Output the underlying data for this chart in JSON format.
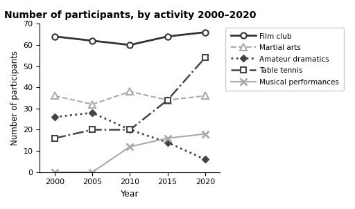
{
  "title": "Number of participants, by activity 2000–2020",
  "xlabel": "Year",
  "ylabel": "Number of participants",
  "years": [
    2000,
    2005,
    2010,
    2015,
    2020
  ],
  "series": [
    {
      "label": "Film club",
      "values": [
        64,
        62,
        60,
        64,
        66
      ],
      "color": "#333333",
      "linestyle": "-",
      "marker": "o",
      "markersize": 6,
      "linewidth": 2,
      "markerfacecolor": "white",
      "markeredgecolor": "#333333",
      "markeredgewidth": 1.5
    },
    {
      "label": "Martial arts",
      "values": [
        36,
        32,
        38,
        34,
        36
      ],
      "color": "#aaaaaa",
      "linestyle": "--",
      "marker": "^",
      "markersize": 7,
      "linewidth": 1.5,
      "markerfacecolor": "white",
      "markeredgecolor": "#aaaaaa",
      "markeredgewidth": 1.5
    },
    {
      "label": "Amateur dramatics",
      "values": [
        26,
        28,
        20,
        14,
        6
      ],
      "color": "#444444",
      "linestyle": ":",
      "marker": "D",
      "markersize": 5,
      "linewidth": 2,
      "markerfacecolor": "#444444",
      "markeredgecolor": "#444444",
      "markeredgewidth": 1.0
    },
    {
      "label": "Table tennis",
      "values": [
        16,
        20,
        20,
        34,
        54
      ],
      "color": "#444444",
      "linestyle": "-.",
      "marker": "s",
      "markersize": 6,
      "linewidth": 1.8,
      "markerfacecolor": "white",
      "markeredgecolor": "#444444",
      "markeredgewidth": 1.5
    },
    {
      "label": "Musical performances",
      "values": [
        0,
        0,
        12,
        16,
        18
      ],
      "color": "#aaaaaa",
      "linestyle": "-",
      "marker": "x",
      "markersize": 7,
      "linewidth": 1.5,
      "markerfacecolor": "#aaaaaa",
      "markeredgecolor": "#aaaaaa",
      "markeredgewidth": 2.0
    }
  ],
  "ylim": [
    0,
    70
  ],
  "yticks": [
    0,
    10,
    20,
    30,
    40,
    50,
    60,
    70
  ],
  "xticks": [
    2000,
    2005,
    2010,
    2015,
    2020
  ],
  "background_color": "#ffffff"
}
